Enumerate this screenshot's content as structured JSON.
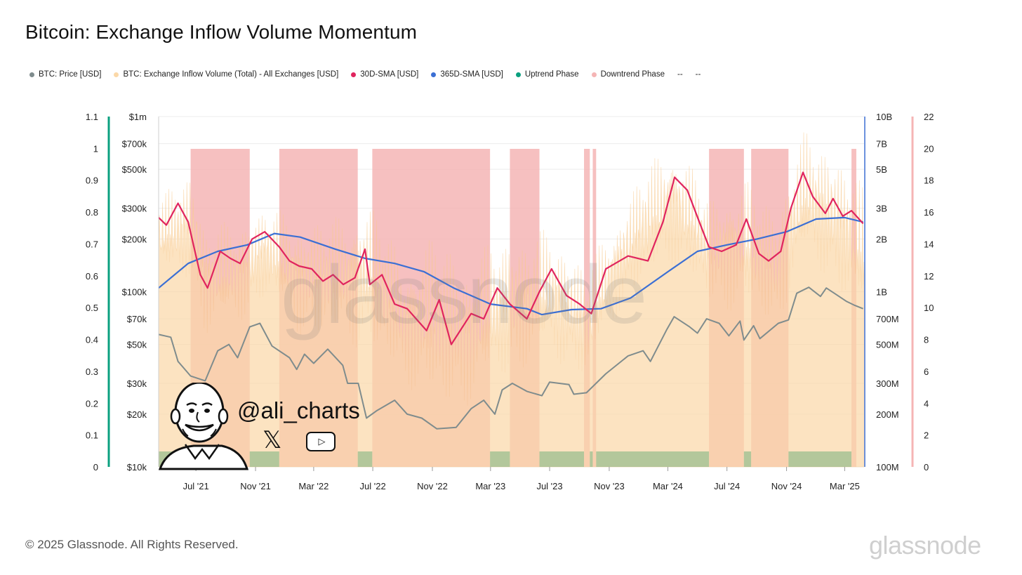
{
  "title": "Bitcoin: Exchange Inflow Volume Momentum",
  "footer": {
    "copyright": "© 2025 Glassnode. All Rights Reserved.",
    "brand": "glassnode"
  },
  "watermark": "glassnode",
  "overlay": {
    "handle": "@ali_charts",
    "x_icon": "𝕏",
    "youtube_icon": "▷"
  },
  "legend": [
    {
      "label": "BTC: Price [USD]",
      "color": "#7f8c8d"
    },
    {
      "label": "BTC: Exchange Inflow Volume (Total) - All Exchanges [USD]",
      "color": "#fbd8a8"
    },
    {
      "label": "30D-SMA [USD]",
      "color": "#e0245e"
    },
    {
      "label": "365D-SMA [USD]",
      "color": "#3b6fd4"
    },
    {
      "label": "Uptrend Phase",
      "color": "#0aa07f"
    },
    {
      "label": "Downtrend Phase",
      "color": "#f5b5b5"
    },
    {
      "label": "--",
      "color": ""
    },
    {
      "label": "--",
      "color": ""
    }
  ],
  "chart_data": {
    "type": "line",
    "title": "Bitcoin: Exchange Inflow Volume Momentum",
    "x_range": [
      "2021-04-15",
      "2025-04-10"
    ],
    "x_ticks": [
      {
        "label": "Jul '21",
        "date": "2021-07-01"
      },
      {
        "label": "Nov '21",
        "date": "2021-11-01"
      },
      {
        "label": "Mar '22",
        "date": "2022-03-01"
      },
      {
        "label": "Jul '22",
        "date": "2022-07-01"
      },
      {
        "label": "Nov '22",
        "date": "2022-11-01"
      },
      {
        "label": "Mar '23",
        "date": "2023-03-01"
      },
      {
        "label": "Jul '23",
        "date": "2023-07-01"
      },
      {
        "label": "Nov '23",
        "date": "2023-11-01"
      },
      {
        "label": "Mar '24",
        "date": "2024-03-01"
      },
      {
        "label": "Jul '24",
        "date": "2024-07-01"
      },
      {
        "label": "Nov '24",
        "date": "2024-11-01"
      },
      {
        "label": "Mar '25",
        "date": "2025-03-01"
      }
    ],
    "axes": {
      "osc_left": {
        "scale": "linear",
        "range": [
          0,
          1.1
        ],
        "ticks": [
          "0",
          "0.1",
          "0.2",
          "0.3",
          "0.4",
          "0.5",
          "0.6",
          "0.7",
          "0.8",
          "0.9",
          "1",
          "1.1"
        ]
      },
      "price": {
        "scale": "log",
        "range": [
          10000,
          1000000
        ],
        "ticks": [
          {
            "v": 10000,
            "label": "$10k"
          },
          {
            "v": 20000,
            "label": "$20k"
          },
          {
            "v": 30000,
            "label": "$30k"
          },
          {
            "v": 50000,
            "label": "$50k"
          },
          {
            "v": 70000,
            "label": "$70k"
          },
          {
            "v": 100000,
            "label": "$100k"
          },
          {
            "v": 200000,
            "label": "$200k"
          },
          {
            "v": 300000,
            "label": "$300k"
          },
          {
            "v": 500000,
            "label": "$500k"
          },
          {
            "v": 700000,
            "label": "$700k"
          },
          {
            "v": 1000000,
            "label": "$1m"
          }
        ]
      },
      "volume": {
        "scale": "log",
        "range": [
          100000000,
          10000000000
        ],
        "ticks": [
          {
            "v": 100000000,
            "label": "100M"
          },
          {
            "v": 200000000,
            "label": "200M"
          },
          {
            "v": 300000000,
            "label": "300M"
          },
          {
            "v": 500000000,
            "label": "500M"
          },
          {
            "v": 700000000,
            "label": "700M"
          },
          {
            "v": 1000000000,
            "label": "1B"
          },
          {
            "v": 2000000000,
            "label": "2B"
          },
          {
            "v": 3000000000,
            "label": "3B"
          },
          {
            "v": 5000000000,
            "label": "5B"
          },
          {
            "v": 7000000000,
            "label": "7B"
          },
          {
            "v": 10000000000,
            "label": "10B"
          }
        ]
      },
      "osc_right": {
        "scale": "linear",
        "range": [
          0,
          22
        ],
        "ticks": [
          "0",
          "2",
          "4",
          "6",
          "8",
          "10",
          "12",
          "14",
          "16",
          "18",
          "20",
          "22"
        ]
      }
    },
    "phases": [
      {
        "type": "up",
        "start": "2021-04-15",
        "end": "2021-06-20"
      },
      {
        "type": "down",
        "start": "2021-06-20",
        "end": "2021-10-20"
      },
      {
        "type": "up",
        "start": "2021-10-20",
        "end": "2021-12-20"
      },
      {
        "type": "down",
        "start": "2021-12-20",
        "end": "2022-05-31"
      },
      {
        "type": "up",
        "start": "2022-05-31",
        "end": "2022-06-30"
      },
      {
        "type": "down",
        "start": "2022-06-30",
        "end": "2023-02-28"
      },
      {
        "type": "up",
        "start": "2023-02-28",
        "end": "2023-04-10"
      },
      {
        "type": "down",
        "start": "2023-04-10",
        "end": "2023-06-10"
      },
      {
        "type": "up",
        "start": "2023-06-10",
        "end": "2023-09-10"
      },
      {
        "type": "down",
        "start": "2023-09-10",
        "end": "2023-09-22"
      },
      {
        "type": "up",
        "start": "2023-09-22",
        "end": "2023-09-28"
      },
      {
        "type": "down",
        "start": "2023-09-28",
        "end": "2023-10-05"
      },
      {
        "type": "up",
        "start": "2023-10-05",
        "end": "2024-05-25"
      },
      {
        "type": "down",
        "start": "2024-05-25",
        "end": "2024-08-05"
      },
      {
        "type": "up",
        "start": "2024-08-05",
        "end": "2024-08-20"
      },
      {
        "type": "down",
        "start": "2024-08-20",
        "end": "2024-11-05"
      },
      {
        "type": "up",
        "start": "2024-11-05",
        "end": "2025-03-15"
      },
      {
        "type": "down",
        "start": "2025-03-15",
        "end": "2025-03-25"
      }
    ],
    "series": [
      {
        "name": "BTC: Price [USD]",
        "axis": "price",
        "points": [
          [
            "2021-04-15",
            57000
          ],
          [
            "2021-05-10",
            55000
          ],
          [
            "2021-05-25",
            40000
          ],
          [
            "2021-06-20",
            33000
          ],
          [
            "2021-07-20",
            31000
          ],
          [
            "2021-08-15",
            46000
          ],
          [
            "2021-09-07",
            50000
          ],
          [
            "2021-09-25",
            42000
          ],
          [
            "2021-10-20",
            63000
          ],
          [
            "2021-11-10",
            66000
          ],
          [
            "2021-12-05",
            49000
          ],
          [
            "2022-01-10",
            42000
          ],
          [
            "2022-01-25",
            36000
          ],
          [
            "2022-02-10",
            44000
          ],
          [
            "2022-03-01",
            39000
          ],
          [
            "2022-03-30",
            47000
          ],
          [
            "2022-04-30",
            38000
          ],
          [
            "2022-05-10",
            30000
          ],
          [
            "2022-06-01",
            30000
          ],
          [
            "2022-06-18",
            19000
          ],
          [
            "2022-07-10",
            21000
          ],
          [
            "2022-08-15",
            24000
          ],
          [
            "2022-09-10",
            20000
          ],
          [
            "2022-10-10",
            19000
          ],
          [
            "2022-11-10",
            16500
          ],
          [
            "2022-12-20",
            16800
          ],
          [
            "2023-01-20",
            21500
          ],
          [
            "2023-02-15",
            24000
          ],
          [
            "2023-03-10",
            20000
          ],
          [
            "2023-03-25",
            27500
          ],
          [
            "2023-04-15",
            30000
          ],
          [
            "2023-05-15",
            27000
          ],
          [
            "2023-06-15",
            25500
          ],
          [
            "2023-07-01",
            30500
          ],
          [
            "2023-08-10",
            29500
          ],
          [
            "2023-08-20",
            26000
          ],
          [
            "2023-09-15",
            26500
          ],
          [
            "2023-10-25",
            34000
          ],
          [
            "2023-12-10",
            43000
          ],
          [
            "2024-01-10",
            46000
          ],
          [
            "2024-01-25",
            40000
          ],
          [
            "2024-02-28",
            61000
          ],
          [
            "2024-03-14",
            72000
          ],
          [
            "2024-04-15",
            63000
          ],
          [
            "2024-05-01",
            58000
          ],
          [
            "2024-05-20",
            70000
          ],
          [
            "2024-06-15",
            66000
          ],
          [
            "2024-07-05",
            56000
          ],
          [
            "2024-07-28",
            68000
          ],
          [
            "2024-08-05",
            53000
          ],
          [
            "2024-08-25",
            64000
          ],
          [
            "2024-09-07",
            54000
          ],
          [
            "2024-10-15",
            66000
          ],
          [
            "2024-11-05",
            69000
          ],
          [
            "2024-11-22",
            98000
          ],
          [
            "2024-12-17",
            106000
          ],
          [
            "2025-01-10",
            94000
          ],
          [
            "2025-01-22",
            105000
          ],
          [
            "2025-02-10",
            97000
          ],
          [
            "2025-03-05",
            88000
          ],
          [
            "2025-03-20",
            84000
          ],
          [
            "2025-04-08",
            80000
          ]
        ]
      },
      {
        "name": "30D-SMA [USD]",
        "axis": "volume",
        "points": [
          [
            "2021-04-15",
            2650000000
          ],
          [
            "2021-05-01",
            2400000000
          ],
          [
            "2021-05-25",
            3200000000
          ],
          [
            "2021-06-15",
            2500000000
          ],
          [
            "2021-07-10",
            1250000000
          ],
          [
            "2021-07-25",
            1050000000
          ],
          [
            "2021-08-20",
            1700000000
          ],
          [
            "2021-09-10",
            1550000000
          ],
          [
            "2021-09-30",
            1450000000
          ],
          [
            "2021-10-25",
            2000000000
          ],
          [
            "2021-11-20",
            2200000000
          ],
          [
            "2021-12-20",
            1800000000
          ],
          [
            "2022-01-10",
            1500000000
          ],
          [
            "2022-01-30",
            1400000000
          ],
          [
            "2022-02-25",
            1350000000
          ],
          [
            "2022-03-20",
            1150000000
          ],
          [
            "2022-04-10",
            1250000000
          ],
          [
            "2022-05-01",
            1100000000
          ],
          [
            "2022-05-25",
            1200000000
          ],
          [
            "2022-06-15",
            1750000000
          ],
          [
            "2022-06-25",
            1100000000
          ],
          [
            "2022-07-20",
            1250000000
          ],
          [
            "2022-08-15",
            850000000
          ],
          [
            "2022-09-10",
            800000000
          ],
          [
            "2022-10-20",
            600000000
          ],
          [
            "2022-11-15",
            900000000
          ],
          [
            "2022-12-10",
            500000000
          ],
          [
            "2023-01-20",
            750000000
          ],
          [
            "2023-02-15",
            700000000
          ],
          [
            "2023-03-15",
            1050000000
          ],
          [
            "2023-04-10",
            850000000
          ],
          [
            "2023-05-15",
            700000000
          ],
          [
            "2023-06-10",
            1000000000
          ],
          [
            "2023-07-05",
            1350000000
          ],
          [
            "2023-08-05",
            950000000
          ],
          [
            "2023-09-01",
            850000000
          ],
          [
            "2023-09-25",
            750000000
          ],
          [
            "2023-10-25",
            1350000000
          ],
          [
            "2023-12-10",
            1600000000
          ],
          [
            "2024-01-20",
            1500000000
          ],
          [
            "2024-02-20",
            2500000000
          ],
          [
            "2024-03-15",
            4500000000
          ],
          [
            "2024-04-10",
            3800000000
          ],
          [
            "2024-05-05",
            2500000000
          ],
          [
            "2024-05-25",
            1800000000
          ],
          [
            "2024-06-20",
            1700000000
          ],
          [
            "2024-07-20",
            1850000000
          ],
          [
            "2024-08-10",
            2600000000
          ],
          [
            "2024-09-05",
            1650000000
          ],
          [
            "2024-09-25",
            1500000000
          ],
          [
            "2024-10-20",
            1700000000
          ],
          [
            "2024-11-10",
            3000000000
          ],
          [
            "2024-12-05",
            4800000000
          ],
          [
            "2024-12-25",
            3500000000
          ],
          [
            "2025-01-20",
            2800000000
          ],
          [
            "2025-02-05",
            3400000000
          ],
          [
            "2025-02-25",
            2700000000
          ],
          [
            "2025-03-15",
            2900000000
          ],
          [
            "2025-04-08",
            2450000000
          ]
        ]
      },
      {
        "name": "365D-SMA [USD]",
        "axis": "volume",
        "points": [
          [
            "2021-04-15",
            1050000000
          ],
          [
            "2021-06-15",
            1450000000
          ],
          [
            "2021-08-15",
            1700000000
          ],
          [
            "2021-10-15",
            1850000000
          ],
          [
            "2021-12-10",
            2150000000
          ],
          [
            "2022-02-01",
            2050000000
          ],
          [
            "2022-04-15",
            1750000000
          ],
          [
            "2022-06-15",
            1550000000
          ],
          [
            "2022-08-15",
            1450000000
          ],
          [
            "2022-10-15",
            1300000000
          ],
          [
            "2022-12-15",
            1050000000
          ],
          [
            "2023-03-01",
            850000000
          ],
          [
            "2023-05-15",
            800000000
          ],
          [
            "2023-06-15",
            740000000
          ],
          [
            "2023-08-15",
            790000000
          ],
          [
            "2023-10-15",
            800000000
          ],
          [
            "2023-12-15",
            920000000
          ],
          [
            "2024-03-01",
            1300000000
          ],
          [
            "2024-05-01",
            1700000000
          ],
          [
            "2024-07-01",
            1850000000
          ],
          [
            "2024-09-01",
            2000000000
          ],
          [
            "2024-11-01",
            2200000000
          ],
          [
            "2025-01-01",
            2600000000
          ],
          [
            "2025-03-01",
            2650000000
          ],
          [
            "2025-04-08",
            2500000000
          ]
        ]
      },
      {
        "name": "BTC: Exchange Inflow Volume (Total) - All Exchanges [USD]",
        "axis": "volume",
        "envelope": [
          [
            "2021-04-15",
            3400000000,
            1200000000
          ],
          [
            "2021-06-20",
            5000000000,
            1100000000
          ],
          [
            "2021-07-20",
            2500000000,
            550000000
          ],
          [
            "2021-10-01",
            2500000000,
            650000000
          ],
          [
            "2021-11-20",
            3200000000,
            900000000
          ],
          [
            "2022-02-01",
            2600000000,
            550000000
          ],
          [
            "2022-05-10",
            2800000000,
            500000000
          ],
          [
            "2022-06-15",
            3600000000,
            450000000
          ],
          [
            "2022-09-01",
            1500000000,
            300000000
          ],
          [
            "2022-11-10",
            2200000000,
            200000000
          ],
          [
            "2023-01-15",
            1500000000,
            220000000
          ],
          [
            "2023-03-15",
            2100000000,
            300000000
          ],
          [
            "2023-07-01",
            2300000000,
            400000000
          ],
          [
            "2023-09-20",
            1400000000,
            300000000
          ],
          [
            "2023-11-15",
            2600000000,
            700000000
          ],
          [
            "2024-03-10",
            7500000000,
            1400000000
          ],
          [
            "2024-05-25",
            3500000000,
            800000000
          ],
          [
            "2024-08-05",
            4500000000,
            750000000
          ],
          [
            "2024-10-15",
            3000000000,
            600000000
          ],
          [
            "2024-12-10",
            8500000000,
            1400000000
          ],
          [
            "2025-02-15",
            6500000000,
            1000000000
          ],
          [
            "2025-04-08",
            4000000000,
            650000000
          ]
        ]
      }
    ]
  }
}
